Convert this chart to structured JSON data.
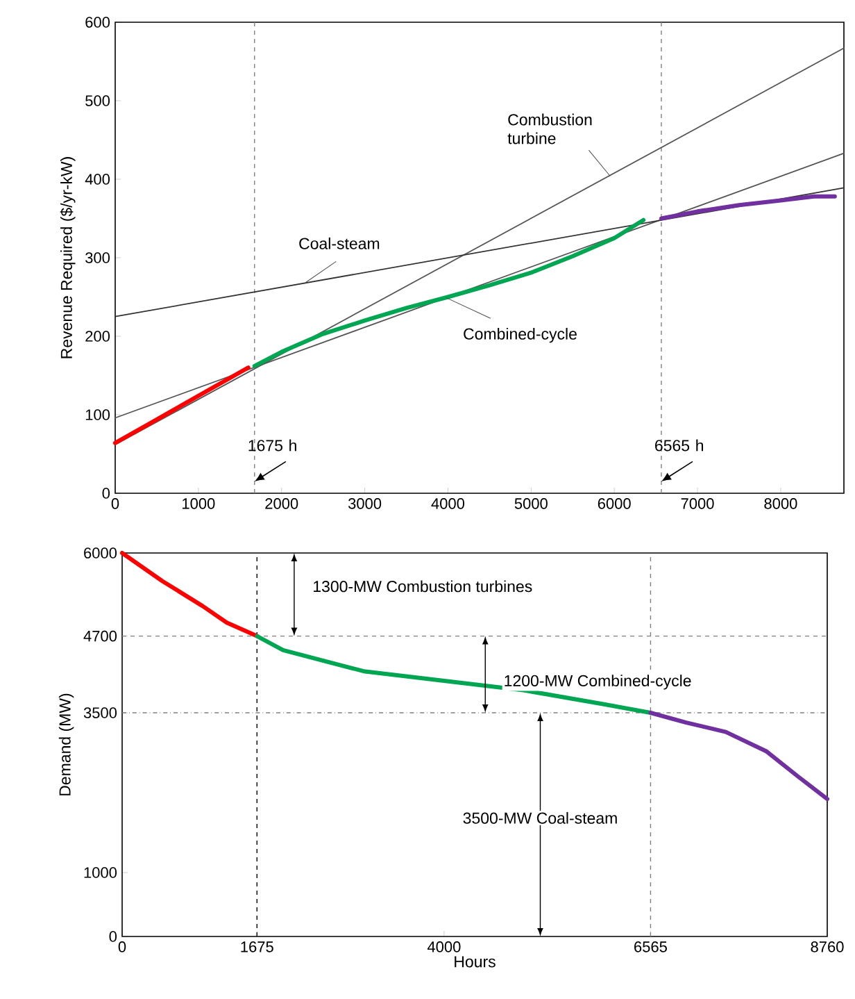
{
  "chart_data": [
    {
      "type": "line",
      "ylabel": "Revenue Required ($/yr-kW)",
      "xlim": [
        0,
        8760
      ],
      "ylim": [
        0,
        600
      ],
      "xticks": [
        0,
        1000,
        2000,
        3000,
        4000,
        5000,
        6000,
        7000,
        8000
      ],
      "yticks": [
        0,
        100,
        200,
        300,
        400,
        500,
        600
      ],
      "marker": "none",
      "line_style": "solid",
      "series": [
        {
          "color": "#555555",
          "x": [
            0,
            8760
          ],
          "values": [
            62,
            567
          ]
        },
        {
          "color": "#555555",
          "x": [
            0,
            8760
          ],
          "values": [
            96,
            433
          ]
        },
        {
          "color": "#333333",
          "x": [
            0,
            8760
          ],
          "values": [
            225,
            389
          ]
        },
        {
          "color": "#ff0000",
          "x": [
            0,
            400,
            800,
            1200,
            1600
          ],
          "values": [
            64,
            88,
            112,
            136,
            160
          ]
        },
        {
          "color": "#00a651",
          "x": [
            1675,
            2000,
            2500,
            3000,
            3500,
            4000,
            4500,
            5000,
            5500,
            6000,
            6350
          ],
          "values": [
            162,
            180,
            203,
            220,
            236,
            250,
            265,
            281,
            302,
            325,
            348
          ]
        },
        {
          "color": "#7030a0",
          "x": [
            6565,
            7000,
            7500,
            8000,
            8400,
            8650
          ],
          "values": [
            350,
            359,
            367,
            373,
            378,
            378
          ]
        }
      ],
      "ref_lines": [
        {
          "axis": "x",
          "value": 1675,
          "color": "#808080",
          "line_style": "dashed"
        },
        {
          "axis": "x",
          "value": 6565,
          "color": "#808080",
          "line_style": "dashed"
        }
      ],
      "annotations": [
        {
          "text": "Combustion turbine",
          "x": 5950,
          "y": 404
        },
        {
          "text": "Coal-steam",
          "x": 2270,
          "y": 267
        },
        {
          "text": "Combined-cycle",
          "x": 3980,
          "y": 249
        },
        {
          "text": "1675 h",
          "x": 1675,
          "y": 15
        },
        {
          "text": "6565 h",
          "x": 6565,
          "y": 15
        }
      ]
    },
    {
      "type": "line",
      "xlabel": "Hours",
      "ylabel": "Demand (MW)",
      "xlim": [
        0,
        8760
      ],
      "ylim": [
        0,
        6000
      ],
      "xticks": [
        0,
        1675,
        4000,
        6565,
        8760
      ],
      "yticks": [
        0,
        1000,
        3500,
        4700,
        6000
      ],
      "marker": "none",
      "line_style": "solid",
      "series": [
        {
          "color": "#ff0000",
          "x": [
            0,
            500,
            1000,
            1300,
            1675
          ],
          "values": [
            6000,
            5560,
            5170,
            4910,
            4700
          ]
        },
        {
          "color": "#00a651",
          "x": [
            1675,
            2000,
            3000,
            4000,
            5000,
            6000,
            6565
          ],
          "values": [
            4700,
            4480,
            4150,
            4000,
            3850,
            3630,
            3500
          ]
        },
        {
          "color": "#7030a0",
          "x": [
            6565,
            7000,
            7500,
            8000,
            8400,
            8760
          ],
          "values": [
            3500,
            3350,
            3200,
            2900,
            2500,
            2150
          ]
        }
      ],
      "ref_lines": [
        {
          "axis": "x",
          "value": 1675,
          "color": "#000000",
          "line_style": "dashed"
        },
        {
          "axis": "x",
          "value": 6565,
          "color": "#808080",
          "line_style": "dashed"
        },
        {
          "axis": "y",
          "value": 4700,
          "color": "#808080",
          "line_style": "dashed"
        },
        {
          "axis": "y",
          "value": 3500,
          "color": "#808080",
          "line_style": "dashdot"
        }
      ],
      "annotations": [
        "1300-MW Combustion turbines",
        "1200-MW Combined-cycle",
        "3500-MW Coal-steam"
      ]
    }
  ]
}
